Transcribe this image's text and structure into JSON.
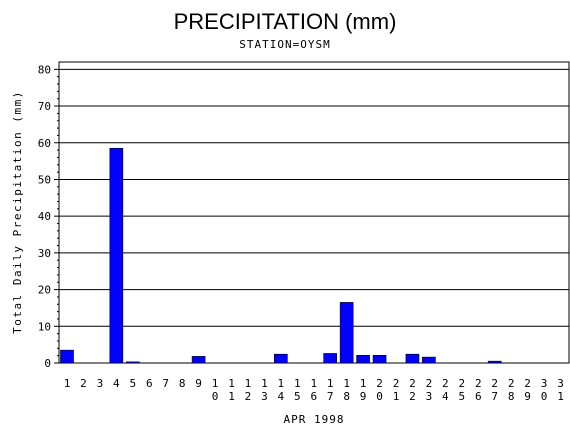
{
  "chart_data": {
    "type": "bar",
    "title": "PRECIPITATION (mm)",
    "subtitle": "STATION=OYSM",
    "xlabel": "APR 1998",
    "ylabel": "Total Daily Precipitation (mm)",
    "ylim": [
      0,
      82
    ],
    "yticks": [
      0,
      10,
      20,
      30,
      40,
      50,
      60,
      70,
      80
    ],
    "grid": true,
    "categories": [
      "1",
      "2",
      "3",
      "4",
      "5",
      "6",
      "7",
      "8",
      "9",
      "10",
      "11",
      "12",
      "13",
      "14",
      "15",
      "16",
      "17",
      "18",
      "19",
      "20",
      "21",
      "22",
      "23",
      "24",
      "25",
      "26",
      "27",
      "28",
      "29",
      "30",
      "31"
    ],
    "values": [
      3.5,
      0,
      0,
      58.5,
      0.3,
      0,
      0,
      0,
      1.8,
      0,
      0,
      0,
      0,
      2.4,
      0,
      0,
      2.6,
      16.5,
      2.1,
      2.1,
      0,
      2.4,
      1.6,
      0,
      0,
      0,
      0.5,
      0,
      0,
      0,
      0
    ],
    "bar_color": "#0000ff"
  }
}
